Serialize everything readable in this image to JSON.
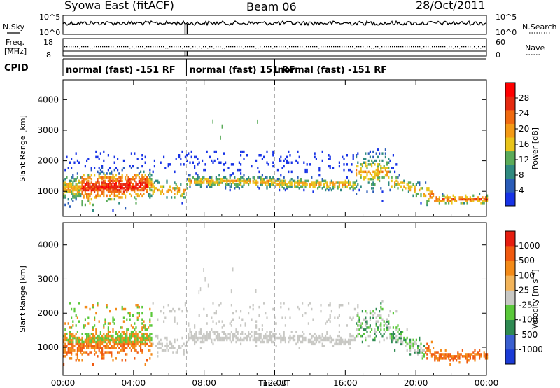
{
  "header": {
    "station_title": "Syowa East (fitACF)",
    "beam_title": "Beam 06",
    "date_title": "28/Oct/2011"
  },
  "summary_panels": {
    "nsky_label": "N.Sky",
    "nsearch_label": "N.Search",
    "noise_ticks": [
      "10^5",
      "10^0"
    ],
    "freq_label_1": "Freq.",
    "freq_label_2": "[MHz]",
    "freq_ticks": [
      "18",
      "8"
    ],
    "nave_label": "Nave",
    "nave_ticks": [
      "60",
      "0"
    ],
    "cpid_label": "CPID",
    "cpid_segments": [
      {
        "label": "normal (fast) -151 RF",
        "start_hour": 0.0
      },
      {
        "label": "normal (fast) 151  RF",
        "start_hour": 7.0
      },
      {
        "label": "normal (fast) -151 RF",
        "start_hour": 12.0
      }
    ],
    "line_color": "#000000"
  },
  "chart_data": [
    {
      "type": "heatmap",
      "name": "power",
      "ylabel": "Slant Range [km]",
      "xlabel": "",
      "x_range_hours": [
        0,
        24
      ],
      "ylim": [
        180,
        4650
      ],
      "y_ticks": [
        1000,
        2000,
        3000,
        4000
      ],
      "x_ticks": [
        "00:00",
        "04:00",
        "08:00",
        "12:00",
        "16:00",
        "20:00",
        "00:00"
      ],
      "x_tick_hours": [
        0,
        4,
        8,
        12,
        16,
        20,
        24
      ],
      "colorbar": {
        "label": "Power [dB]",
        "ticks": [
          "4",
          "8",
          "12",
          "16",
          "20",
          "24",
          "28"
        ],
        "tick_values": [
          4,
          8,
          12,
          16,
          20,
          24,
          28
        ],
        "range": [
          0,
          32
        ],
        "colors": [
          "#1733e6",
          "#2a5cb8",
          "#2f8a80",
          "#5aab59",
          "#e9c41a",
          "#f39a16",
          "#f06a10",
          "#e52a10",
          "#ff0000"
        ]
      },
      "cpid_change_hours": [
        7.0,
        12.0
      ]
    },
    {
      "type": "heatmap",
      "name": "velocity",
      "ylabel": "Slant Range [km]",
      "xlabel": "Time UT",
      "x_range_hours": [
        0,
        24
      ],
      "ylim": [
        180,
        4650
      ],
      "y_ticks": [
        1000,
        2000,
        3000,
        4000
      ],
      "x_ticks": [
        "00:00",
        "04:00",
        "08:00",
        "12:00",
        "16:00",
        "20:00",
        "00:00"
      ],
      "x_tick_hours": [
        0,
        4,
        8,
        12,
        16,
        20,
        24
      ],
      "colorbar": {
        "label": "Velocity [m s⁻¹]",
        "ticks": [
          "1000",
          "500",
          "100",
          "25",
          "-25",
          "-100",
          "-500",
          "-1000"
        ],
        "colors": [
          "#1b3bd6",
          "#3a5fcf",
          "#2e8a52",
          "#5ac83a",
          "#c8c8c4",
          "#f2b45a",
          "#f38a18",
          "#f05a10",
          "#e61e10"
        ]
      },
      "cpid_change_hours": [
        7.0,
        12.0
      ]
    }
  ]
}
